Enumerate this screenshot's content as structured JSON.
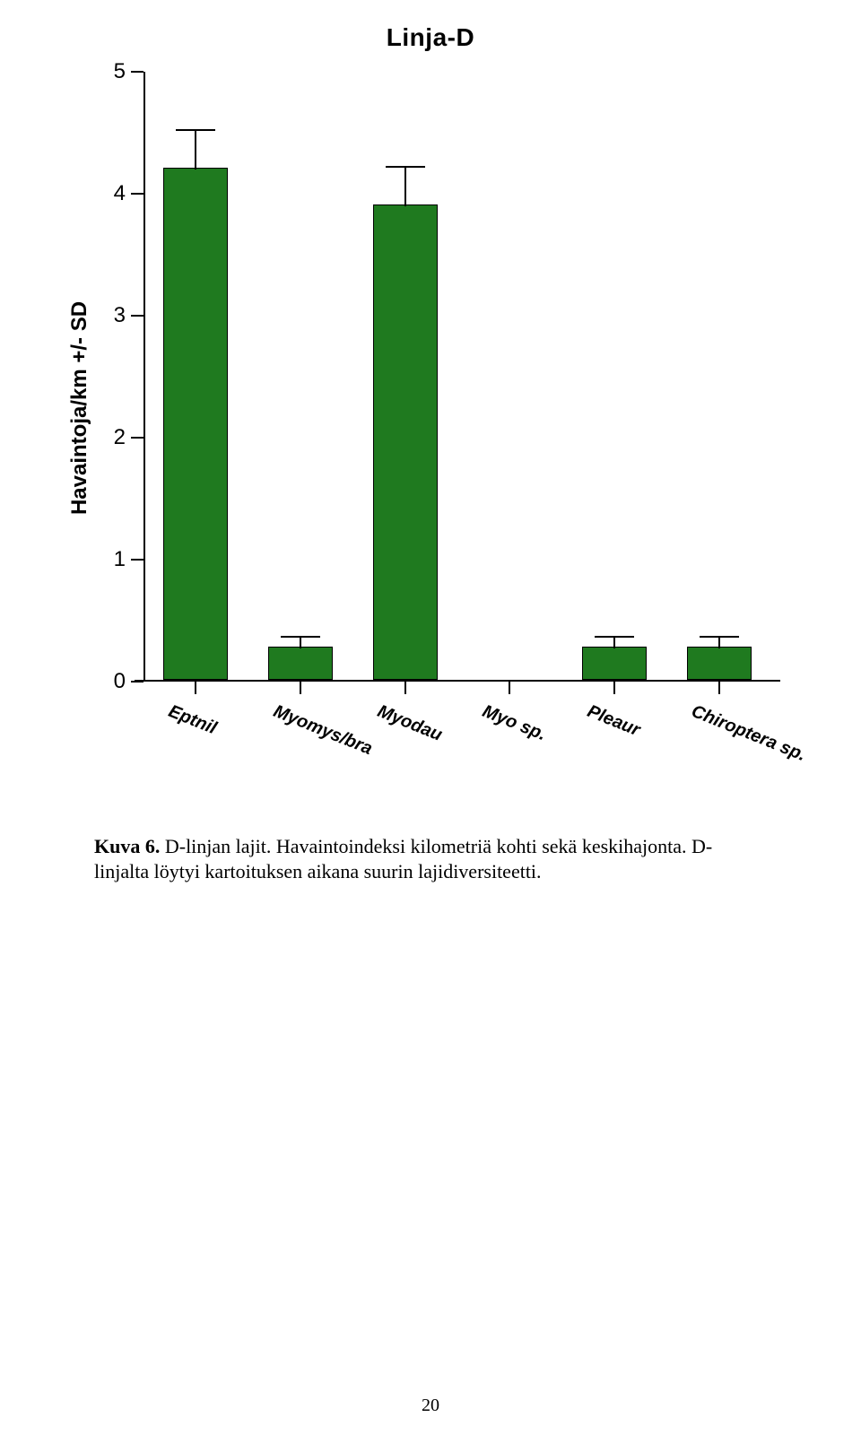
{
  "chart": {
    "type": "bar",
    "title": "Linja-D",
    "title_fontsize": 28,
    "title_fontweight": 800,
    "y_axis_label": "Havaintoja/km +/- SD",
    "y_axis_fontsize": 24,
    "ylim": [
      0,
      5
    ],
    "yticks": [
      0,
      1,
      2,
      3,
      4,
      5
    ],
    "ytick_fontsize": 24,
    "xtick_fontsize": 20,
    "xtick_rotation_deg": 22,
    "categories": [
      "Eptnil",
      "Myomys/bra",
      "Myodau",
      "Myo sp.",
      "Pleaur",
      "Chiroptera sp."
    ],
    "values": [
      4.2,
      0.27,
      3.9,
      0.0,
      0.27,
      0.27
    ],
    "err_upper": [
      0.32,
      0.1,
      0.32,
      0.0,
      0.1,
      0.1
    ],
    "bar_color": "#1f7a1f",
    "bar_border_color": "#000000",
    "background_color": "#ffffff",
    "axis_color": "#000000",
    "bar_rel_width": 0.62,
    "error_cap_rel_width": 0.38
  },
  "caption": {
    "lead": "Kuva 6.",
    "text": " D-linjan lajit. Havaintoindeksi kilometriä kohti sekä keskihajonta. D-linjalta löytyi kartoituksen aikana suurin lajidiversiteetti."
  },
  "page_number": "20"
}
